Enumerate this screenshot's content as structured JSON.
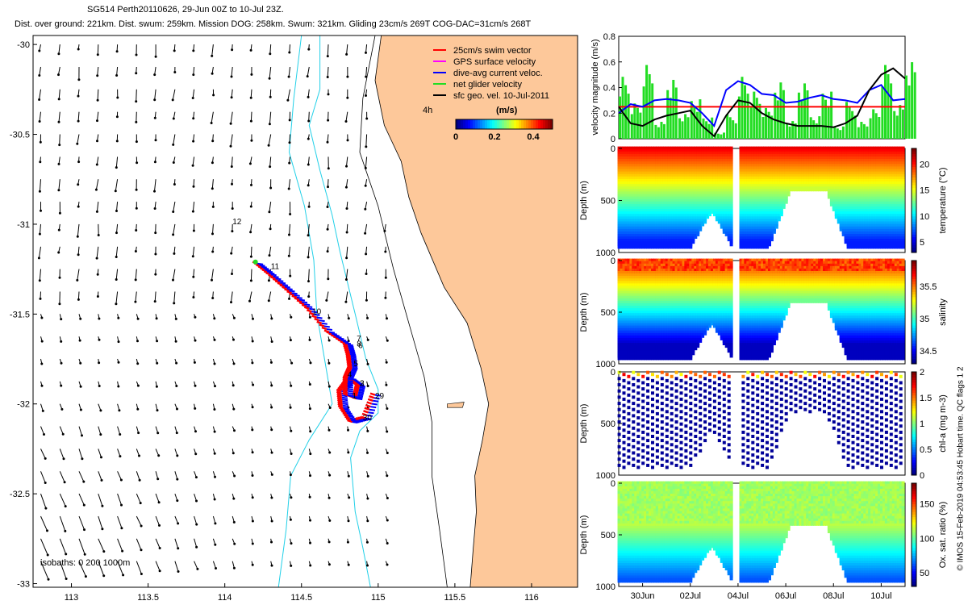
{
  "header": {
    "title": "SG514 Perth20110626, 29-Jun 00Z to 10-Jul 23Z.",
    "stats": "Dist. over ground: 221km. Dist. swum: 259km. Mission DOG: 258km. Swum: 321km. Gliding 23cm/s 269T COG-DAC=31cm/s 268T"
  },
  "footer_stamp": "© IMOS 15-Feb-2019 04:53:45 Hobart time. QC flags 1 2",
  "colors": {
    "land": "#fdc89a",
    "isobath": "#22d0e8",
    "swim": "#ff0000",
    "dac": "#0000ff",
    "net": "#22dd22",
    "gps": "#ff00ff",
    "sfc": "#000000"
  },
  "chart_data": [
    {
      "type": "map",
      "xlim": [
        112.75,
        116.3
      ],
      "ylim": [
        -33.02,
        -29.95
      ],
      "x_ticks": [
        "113",
        "113.5",
        "114",
        "114.5",
        "115",
        "115.5",
        "116"
      ],
      "y_ticks": [
        "-30",
        "-30.5",
        "-31",
        "-31.5",
        "-32",
        "-32.5",
        "-33"
      ],
      "legend": [
        "25cm/s swim vector",
        "GPS surface velocity",
        "dive-avg current veloc.",
        "net glider velocity",
        "sfc geo. vel. 10-Jul-2011"
      ],
      "legend_extra": "4h",
      "colorbar": {
        "label": "(m/s)",
        "ticks": [
          "0",
          "0.2",
          "0.4"
        ],
        "range": [
          0,
          0.5
        ]
      },
      "isobath_note": "isobaths: 0   200   1000m",
      "day_labels": [
        {
          "text": "29",
          "lon": 114.98,
          "lat": -31.97
        },
        {
          "text": "30",
          "lon": 114.9,
          "lat": -32.09
        },
        {
          "text": "1",
          "lon": 114.83,
          "lat": -31.97
        },
        {
          "text": "2",
          "lon": 114.88,
          "lat": -31.9
        },
        {
          "text": "3",
          "lon": 114.88,
          "lat": -31.9
        },
        {
          "text": "4",
          "lon": 114.8,
          "lat": -31.85
        },
        {
          "text": "5",
          "lon": 114.84,
          "lat": -31.79
        },
        {
          "text": "6",
          "lon": 114.87,
          "lat": -31.69
        },
        {
          "text": "7",
          "lon": 114.86,
          "lat": -31.65
        },
        {
          "text": "8",
          "lon": 114.86,
          "lat": -31.68
        },
        {
          "text": "10",
          "lon": 114.57,
          "lat": -31.5
        },
        {
          "text": "11",
          "lon": 114.3,
          "lat": -31.25
        },
        {
          "text": "12",
          "lon": 114.05,
          "lat": -31.0
        }
      ],
      "track": [
        [
          114.98,
          -31.95
        ],
        [
          114.92,
          -32.08
        ],
        [
          114.83,
          -32.1
        ],
        [
          114.77,
          -32.02
        ],
        [
          114.76,
          -31.93
        ],
        [
          114.82,
          -31.86
        ],
        [
          114.88,
          -31.9
        ],
        [
          114.86,
          -31.97
        ],
        [
          114.8,
          -31.95
        ],
        [
          114.8,
          -31.86
        ],
        [
          114.83,
          -31.8
        ],
        [
          114.82,
          -31.73
        ],
        [
          114.8,
          -31.67
        ],
        [
          114.68,
          -31.6
        ],
        [
          114.55,
          -31.47
        ],
        [
          114.42,
          -31.37
        ],
        [
          114.3,
          -31.28
        ],
        [
          114.2,
          -31.21
        ]
      ],
      "land_outline": [
        [
          115.02,
          -29.95
        ],
        [
          114.98,
          -30.2
        ],
        [
          115.04,
          -30.45
        ],
        [
          115.15,
          -30.65
        ],
        [
          115.2,
          -30.85
        ],
        [
          115.28,
          -31.05
        ],
        [
          115.43,
          -31.35
        ],
        [
          115.58,
          -31.55
        ],
        [
          115.67,
          -31.8
        ],
        [
          115.72,
          -32.0
        ],
        [
          115.68,
          -32.2
        ],
        [
          115.63,
          -32.4
        ],
        [
          115.64,
          -32.6
        ],
        [
          115.62,
          -32.8
        ],
        [
          115.6,
          -33.02
        ],
        [
          116.3,
          -33.02
        ],
        [
          116.3,
          -29.95
        ]
      ]
    },
    {
      "type": "line",
      "ylabel": "velocity magnitude (m/s)",
      "ylim": [
        0,
        0.8
      ],
      "y_ticks": [
        "0",
        "0.2",
        "0.4",
        "0.6",
        "0.8"
      ],
      "x_days": [
        0,
        12
      ],
      "red_level": 0.25,
      "series": [
        {
          "color": "#0000ff",
          "x": [
            0,
            0.5,
            1,
            1.5,
            2,
            2.5,
            3,
            3.5,
            4,
            4.5,
            5,
            5.5,
            6,
            6.5,
            7,
            7.5,
            8,
            8.5,
            9,
            9.5,
            10,
            10.5,
            11,
            11.5,
            12
          ],
          "y": [
            0.2,
            0.27,
            0.25,
            0.3,
            0.31,
            0.3,
            0.28,
            0.2,
            0.1,
            0.38,
            0.45,
            0.42,
            0.35,
            0.34,
            0.28,
            0.29,
            0.32,
            0.34,
            0.31,
            0.3,
            0.28,
            0.38,
            0.42,
            0.3,
            0.31
          ]
        },
        {
          "color": "#000000",
          "x": [
            0,
            0.5,
            1,
            1.5,
            2,
            2.5,
            3,
            3.5,
            4,
            4.5,
            5,
            5.5,
            6,
            6.5,
            7,
            7.5,
            8,
            8.5,
            9,
            9.5,
            10,
            10.5,
            11,
            11.5,
            12
          ],
          "y": [
            0.25,
            0.12,
            0.1,
            0.15,
            0.18,
            0.2,
            0.22,
            0.1,
            0.02,
            0.18,
            0.3,
            0.28,
            0.2,
            0.15,
            0.12,
            0.1,
            0.1,
            0.1,
            0.09,
            0.12,
            0.18,
            0.38,
            0.5,
            0.55,
            0.47
          ]
        },
        {
          "color": "#22dd22",
          "x": [
            0,
            0.5,
            1,
            1.5,
            2,
            2.5,
            3,
            3.5,
            4,
            4.5,
            5,
            5.5,
            6,
            6.5,
            7,
            7.5,
            8,
            8.5,
            9,
            9.5,
            10,
            10.5,
            11,
            11.5,
            12
          ],
          "y": [
            0.55,
            0.3,
            0.6,
            0.15,
            0.5,
            0.2,
            0.35,
            0.18,
            0.05,
            0.2,
            0.55,
            0.4,
            0.25,
            0.5,
            0.15,
            0.45,
            0.2,
            0.4,
            0.1,
            0.3,
            0.15,
            0.25,
            0.6,
            0.3,
            0.65
          ]
        }
      ]
    },
    {
      "type": "scatter",
      "ylabel": "Depth (m)",
      "y_ticks": [
        "0",
        "500",
        "1000"
      ],
      "ylim": [
        1000,
        0
      ],
      "colorbar_label": "temperature (°C)",
      "c_ticks": [
        "5",
        "10",
        "15",
        "20"
      ],
      "crange": [
        3,
        23
      ]
    },
    {
      "type": "scatter",
      "ylabel": "Depth (m)",
      "y_ticks": [
        "0",
        "500",
        "1000"
      ],
      "ylim": [
        1000,
        0
      ],
      "colorbar_label": "salinity",
      "c_ticks": [
        "34.5",
        "35",
        "35.5"
      ],
      "crange": [
        34.3,
        35.9
      ]
    },
    {
      "type": "scatter",
      "ylabel": "Depth (m)",
      "y_ticks": [
        "0",
        "500",
        "1000"
      ],
      "ylim": [
        1000,
        0
      ],
      "colorbar_label": "chl-a (mg m-3)",
      "c_ticks": [
        "0",
        "0.5",
        "1",
        "1.5",
        "2"
      ],
      "crange": [
        0,
        2
      ]
    },
    {
      "type": "scatter",
      "ylabel": "Depth (m)",
      "y_ticks": [
        "0",
        "500",
        "1000"
      ],
      "ylim": [
        1000,
        0
      ],
      "colorbar_label": "Ox. sat. ratio (%)",
      "c_ticks": [
        "50",
        "100",
        "150"
      ],
      "crange": [
        30,
        180
      ],
      "x_ticks": [
        "30Jun",
        "02Jul",
        "04Jul",
        "06Jul",
        "08Jul",
        "10Jul"
      ],
      "x_tick_days": [
        1,
        3,
        5,
        7,
        9,
        11
      ]
    }
  ]
}
